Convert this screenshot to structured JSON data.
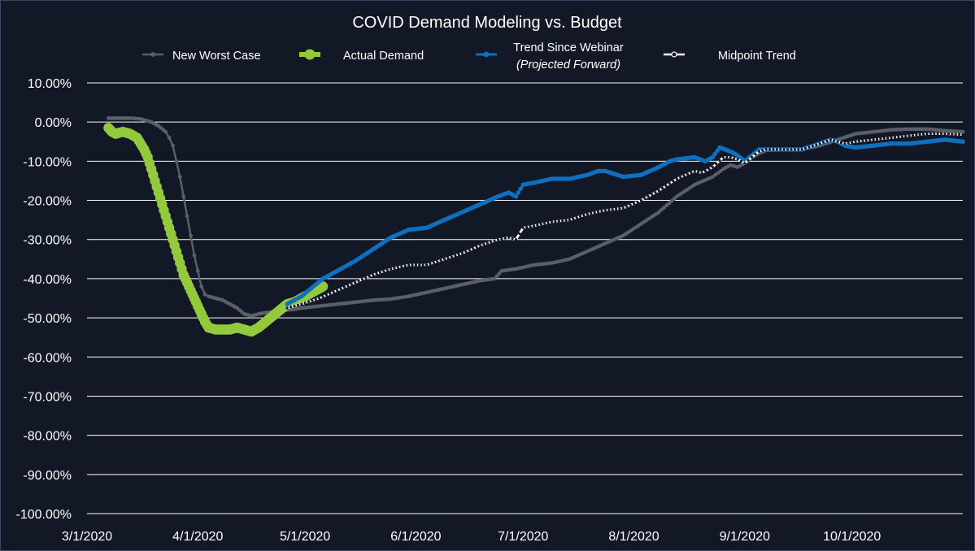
{
  "chart_data": {
    "type": "line",
    "title": "COVID Demand Modeling vs. Budget",
    "xlabel": "",
    "ylabel": "",
    "x_tick_labels": [
      "3/1/2020",
      "4/1/2020",
      "5/1/2020",
      "6/1/2020",
      "7/1/2020",
      "8/1/2020",
      "9/1/2020",
      "10/1/2020"
    ],
    "y_tick_labels": [
      "10.00%",
      "0.00%",
      "-10.00%",
      "-20.00%",
      "-30.00%",
      "-40.00%",
      "-50.00%",
      "-60.00%",
      "-70.00%",
      "-80.00%",
      "-90.00%",
      "-100.00%"
    ],
    "x_unit": "days since 3/1/2020",
    "xlim": [
      0,
      245
    ],
    "ylim": [
      -100,
      10
    ],
    "grid": true,
    "legend_position": "top",
    "series": [
      {
        "name": "New Worst Case",
        "color": "#5a6068",
        "style": "small-dots",
        "points": [
          [
            6,
            1
          ],
          [
            8,
            1
          ],
          [
            12,
            1
          ],
          [
            15,
            0.8
          ],
          [
            18,
            0
          ],
          [
            20,
            -1
          ],
          [
            22,
            -2.5
          ],
          [
            23,
            -4
          ],
          [
            24,
            -6
          ],
          [
            25,
            -10
          ],
          [
            26,
            -14
          ],
          [
            27,
            -19
          ],
          [
            28,
            -24
          ],
          [
            29,
            -29
          ],
          [
            30,
            -34
          ],
          [
            31,
            -38
          ],
          [
            32,
            -42
          ],
          [
            33,
            -44
          ],
          [
            34,
            -44.5
          ],
          [
            36,
            -45
          ],
          [
            38,
            -45.5
          ],
          [
            40,
            -46.5
          ],
          [
            42,
            -47.5
          ],
          [
            44,
            -49
          ],
          [
            46,
            -49.5
          ],
          [
            48,
            -49
          ],
          [
            50,
            -48.7
          ],
          [
            52,
            -48.5
          ],
          [
            54,
            -48.2
          ],
          [
            56,
            -48
          ],
          [
            58,
            -47.8
          ],
          [
            60,
            -47.5
          ],
          [
            65,
            -47
          ],
          [
            70,
            -46.5
          ],
          [
            75,
            -46
          ],
          [
            80,
            -45.5
          ],
          [
            85,
            -45.2
          ],
          [
            90,
            -44.5
          ],
          [
            95,
            -43.5
          ],
          [
            100,
            -42.5
          ],
          [
            105,
            -41.5
          ],
          [
            110,
            -40.5
          ],
          [
            114,
            -40
          ],
          [
            116,
            -38
          ],
          [
            120,
            -37.5
          ],
          [
            125,
            -36.5
          ],
          [
            130,
            -36
          ],
          [
            135,
            -35
          ],
          [
            140,
            -33
          ],
          [
            145,
            -31
          ],
          [
            150,
            -29
          ],
          [
            155,
            -26
          ],
          [
            160,
            -23
          ],
          [
            165,
            -19
          ],
          [
            170,
            -16
          ],
          [
            175,
            -14
          ],
          [
            178,
            -12
          ],
          [
            180,
            -11
          ],
          [
            182,
            -11.5
          ],
          [
            184,
            -10.5
          ],
          [
            186,
            -9
          ],
          [
            188,
            -8
          ],
          [
            190,
            -7.2
          ],
          [
            195,
            -7
          ],
          [
            200,
            -7
          ],
          [
            205,
            -6
          ],
          [
            210,
            -4.5
          ],
          [
            215,
            -3
          ],
          [
            220,
            -2.5
          ],
          [
            225,
            -2
          ],
          [
            230,
            -1.8
          ],
          [
            235,
            -1.8
          ],
          [
            240,
            -2.2
          ],
          [
            245,
            -2.5
          ]
        ]
      },
      {
        "name": "Actual Demand",
        "color": "#94c93d",
        "style": "large-dots",
        "points": [
          [
            6,
            -1.5
          ],
          [
            7,
            -2.5
          ],
          [
            8,
            -3
          ],
          [
            10,
            -2.5
          ],
          [
            12,
            -3
          ],
          [
            14,
            -4
          ],
          [
            15,
            -5.5
          ],
          [
            16,
            -7
          ],
          [
            17,
            -9
          ],
          [
            18,
            -12
          ],
          [
            19,
            -15
          ],
          [
            20,
            -18
          ],
          [
            21,
            -21
          ],
          [
            22,
            -24
          ],
          [
            23,
            -27
          ],
          [
            24,
            -30
          ],
          [
            25,
            -33
          ],
          [
            26,
            -36
          ],
          [
            27,
            -39
          ],
          [
            28,
            -41
          ],
          [
            29,
            -43
          ],
          [
            30,
            -45
          ],
          [
            31,
            -47
          ],
          [
            32,
            -49
          ],
          [
            33,
            -51
          ],
          [
            34,
            -52.5
          ],
          [
            36,
            -53
          ],
          [
            38,
            -53
          ],
          [
            40,
            -53
          ],
          [
            42,
            -52.5
          ],
          [
            44,
            -53
          ],
          [
            46,
            -53.5
          ],
          [
            48,
            -52.5
          ],
          [
            50,
            -51
          ],
          [
            52,
            -49.5
          ],
          [
            54,
            -48
          ],
          [
            56,
            -46.5
          ],
          [
            58,
            -46
          ],
          [
            60,
            -45
          ],
          [
            62,
            -44
          ],
          [
            64,
            -43
          ],
          [
            66,
            -42
          ]
        ]
      },
      {
        "name": "Trend Since Webinar",
        "name_sub": "(Projected Forward)",
        "color": "#0f6fc0",
        "style": "dots",
        "points": [
          [
            56,
            -46.5
          ],
          [
            58,
            -45.5
          ],
          [
            60,
            -44.5
          ],
          [
            62,
            -43
          ],
          [
            64,
            -41.5
          ],
          [
            66,
            -40
          ],
          [
            70,
            -38
          ],
          [
            75,
            -35.5
          ],
          [
            80,
            -32.5
          ],
          [
            85,
            -29.5
          ],
          [
            90,
            -27.5
          ],
          [
            95,
            -27
          ],
          [
            100,
            -25
          ],
          [
            105,
            -23
          ],
          [
            110,
            -21
          ],
          [
            115,
            -19
          ],
          [
            118,
            -18
          ],
          [
            120,
            -19
          ],
          [
            122,
            -16
          ],
          [
            125,
            -15.5
          ],
          [
            130,
            -14.5
          ],
          [
            135,
            -14.5
          ],
          [
            140,
            -13.5
          ],
          [
            143,
            -12.5
          ],
          [
            145,
            -12.5
          ],
          [
            150,
            -14
          ],
          [
            155,
            -13.5
          ],
          [
            160,
            -11.5
          ],
          [
            163,
            -10
          ],
          [
            165,
            -9.5
          ],
          [
            170,
            -9
          ],
          [
            173,
            -10
          ],
          [
            175,
            -9
          ],
          [
            177,
            -6.5
          ],
          [
            180,
            -7.5
          ],
          [
            182,
            -8.5
          ],
          [
            184,
            -10
          ],
          [
            186,
            -8.5
          ],
          [
            188,
            -7
          ],
          [
            190,
            -7
          ],
          [
            195,
            -7
          ],
          [
            200,
            -7
          ],
          [
            205,
            -5.5
          ],
          [
            208,
            -4.5
          ],
          [
            210,
            -5
          ],
          [
            212,
            -6
          ],
          [
            215,
            -6.5
          ],
          [
            220,
            -6
          ],
          [
            225,
            -5.5
          ],
          [
            230,
            -5.5
          ],
          [
            235,
            -5
          ],
          [
            240,
            -4.5
          ],
          [
            245,
            -5
          ]
        ]
      },
      {
        "name": "Midpoint Trend",
        "color": "#ffffff",
        "style": "white-dash-dots",
        "points": [
          [
            56,
            -47.5
          ],
          [
            60,
            -46.5
          ],
          [
            65,
            -45
          ],
          [
            70,
            -43
          ],
          [
            75,
            -41
          ],
          [
            80,
            -39
          ],
          [
            85,
            -37.5
          ],
          [
            90,
            -36.5
          ],
          [
            95,
            -36.5
          ],
          [
            100,
            -35
          ],
          [
            105,
            -33.5
          ],
          [
            110,
            -31.5
          ],
          [
            115,
            -30
          ],
          [
            118,
            -29.5
          ],
          [
            120,
            -30
          ],
          [
            122,
            -27
          ],
          [
            125,
            -26.5
          ],
          [
            130,
            -25.5
          ],
          [
            135,
            -25
          ],
          [
            140,
            -23.5
          ],
          [
            145,
            -22.5
          ],
          [
            150,
            -22
          ],
          [
            155,
            -20
          ],
          [
            160,
            -17.5
          ],
          [
            165,
            -14.5
          ],
          [
            170,
            -12.5
          ],
          [
            172,
            -13
          ],
          [
            175,
            -11.5
          ],
          [
            178,
            -9
          ],
          [
            180,
            -9
          ],
          [
            182,
            -9.5
          ],
          [
            184,
            -10.5
          ],
          [
            186,
            -9
          ],
          [
            188,
            -7.5
          ],
          [
            190,
            -7
          ],
          [
            195,
            -7
          ],
          [
            200,
            -7
          ],
          [
            205,
            -5.5
          ],
          [
            208,
            -4.5
          ],
          [
            210,
            -5
          ],
          [
            212,
            -5.5
          ],
          [
            215,
            -5
          ],
          [
            220,
            -4.5
          ],
          [
            225,
            -4
          ],
          [
            230,
            -3.5
          ],
          [
            235,
            -3
          ],
          [
            240,
            -3
          ],
          [
            245,
            -3.2
          ]
        ]
      }
    ]
  }
}
